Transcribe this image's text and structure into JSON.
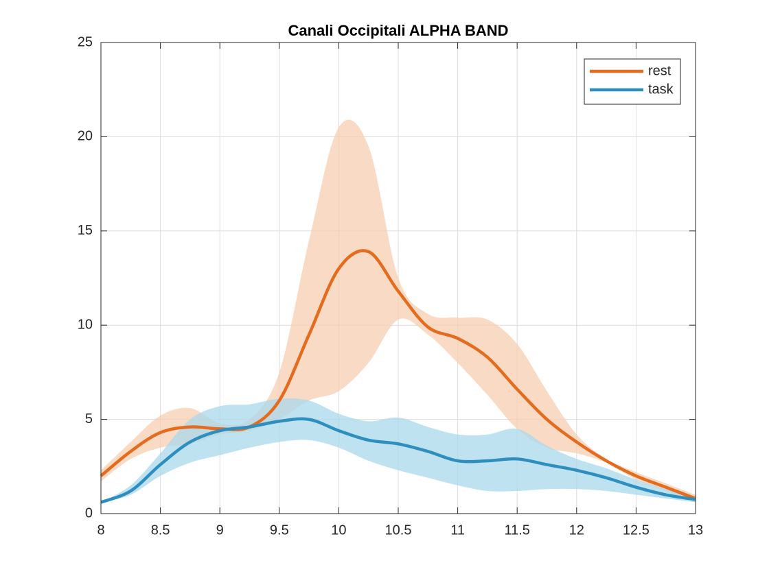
{
  "chart_data": {
    "type": "line",
    "title": "Canali Occipitali ALPHA BAND",
    "x": [
      8,
      8.25,
      8.5,
      8.75,
      9,
      9.25,
      9.5,
      9.75,
      10,
      10.25,
      10.5,
      10.75,
      11,
      11.25,
      11.5,
      11.75,
      12,
      12.25,
      12.5,
      12.75,
      13
    ],
    "series": [
      {
        "name": "rest",
        "color": "#e46c1f",
        "band_color": "#f7cdb0",
        "values": [
          2.0,
          3.3,
          4.3,
          4.6,
          4.5,
          4.6,
          6.0,
          9.5,
          13.0,
          13.9,
          11.8,
          9.9,
          9.3,
          8.3,
          6.6,
          5.0,
          3.8,
          2.8,
          2.0,
          1.4,
          0.8
        ],
        "upper": [
          2.3,
          3.8,
          5.2,
          5.6,
          4.8,
          5.0,
          7.5,
          14.5,
          20.5,
          19.5,
          12.5,
          10.6,
          10.4,
          10.3,
          9.0,
          6.5,
          4.2,
          2.9,
          2.2,
          1.6,
          1.0
        ],
        "lower": [
          1.7,
          2.9,
          3.5,
          3.7,
          4.2,
          4.4,
          5.0,
          6.0,
          6.5,
          8.0,
          10.3,
          9.5,
          8.0,
          6.3,
          4.5,
          3.5,
          3.2,
          2.7,
          1.8,
          1.2,
          0.6
        ]
      },
      {
        "name": "task",
        "color": "#2e8fbe",
        "band_color": "#a9d8ec",
        "values": [
          0.6,
          1.2,
          2.6,
          3.8,
          4.4,
          4.6,
          4.9,
          5.0,
          4.4,
          3.9,
          3.7,
          3.3,
          2.8,
          2.8,
          2.9,
          2.6,
          2.3,
          1.9,
          1.4,
          1.0,
          0.75
        ],
        "upper": [
          0.6,
          1.5,
          3.2,
          5.0,
          5.7,
          5.8,
          6.1,
          6.0,
          5.3,
          4.9,
          5.1,
          4.6,
          4.2,
          4.2,
          4.5,
          3.6,
          2.9,
          2.4,
          1.8,
          1.3,
          0.9
        ],
        "lower": [
          0.6,
          1.0,
          2.0,
          2.7,
          3.1,
          3.5,
          3.8,
          3.9,
          3.5,
          2.8,
          2.3,
          1.9,
          1.5,
          1.2,
          1.2,
          1.3,
          1.3,
          1.2,
          1.0,
          0.8,
          0.6
        ]
      }
    ],
    "xlim": [
      8,
      13
    ],
    "xticks": [
      8,
      8.5,
      9,
      9.5,
      10,
      10.5,
      11,
      11.5,
      12,
      12.5,
      13
    ],
    "ylim": [
      0,
      25
    ],
    "yticks": [
      0,
      5,
      10,
      15,
      20,
      25
    ],
    "grid": true,
    "legend": "northeast"
  }
}
